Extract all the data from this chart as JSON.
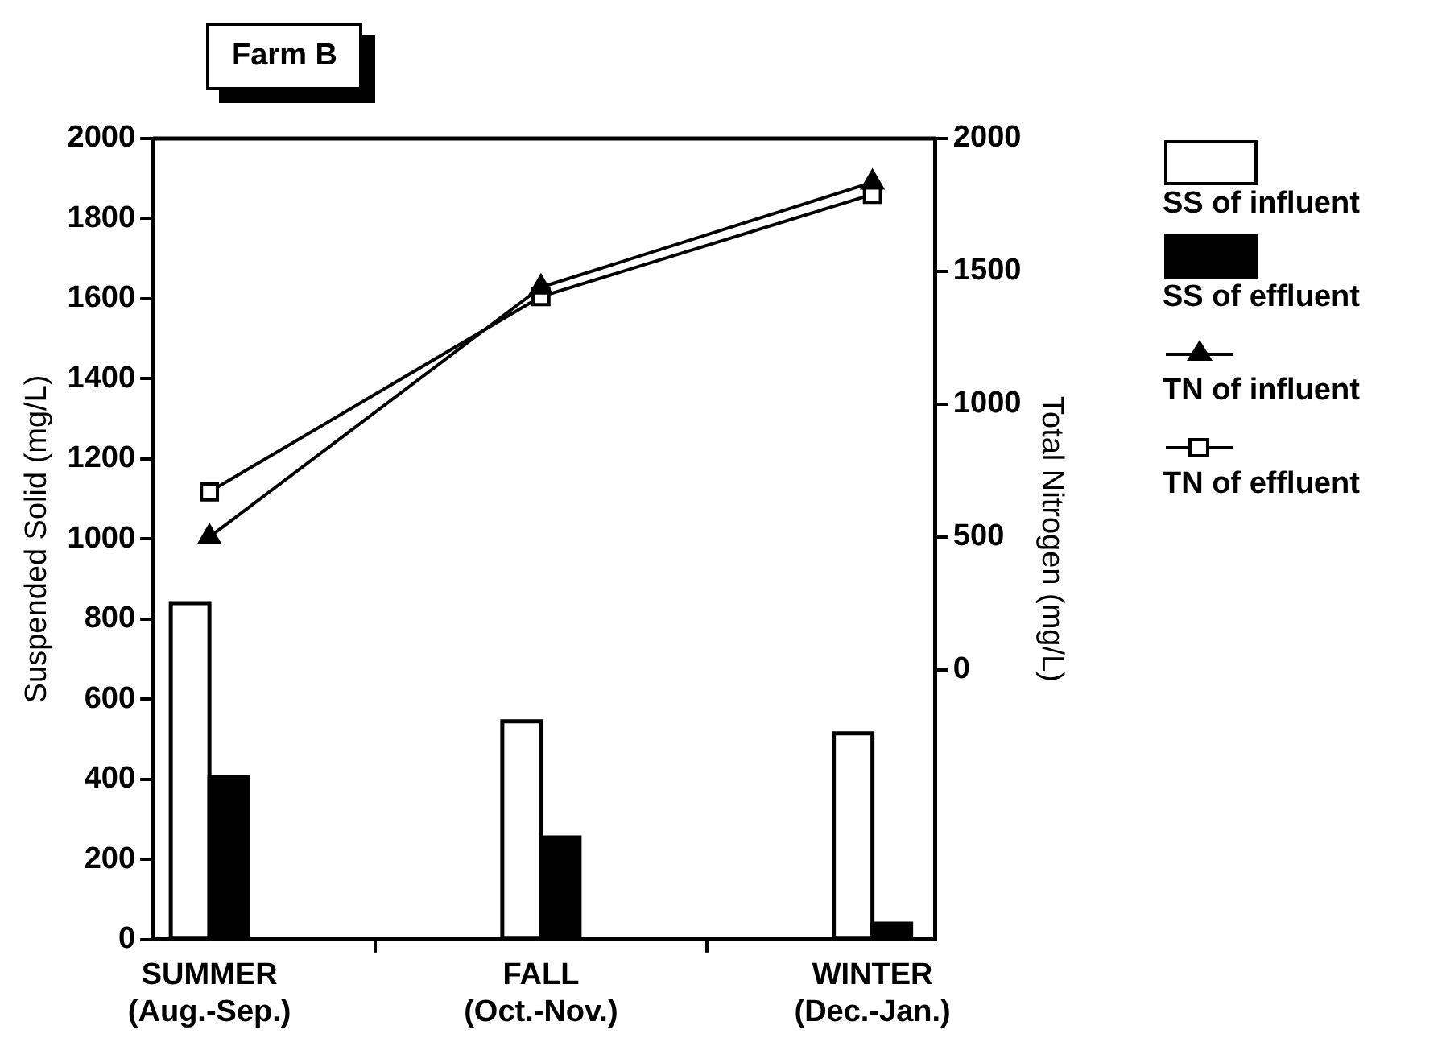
{
  "chart_data": {
    "type": "bar",
    "title": "Farm B",
    "categories": [
      "SUMMER\n(Aug.-Sep.)",
      "FALL\n(Oct.-Nov.)",
      "WINTER\n(Dec.-Jan.)"
    ],
    "ylabel": "Suspended Solid (mg/L)",
    "y2label": "Total Nitrogen (mg/L)",
    "ylim": [
      0,
      2000
    ],
    "yticks": [
      0,
      200,
      400,
      600,
      800,
      1000,
      1200,
      1400,
      1600,
      1800,
      2000
    ],
    "y2lim": [
      -1015,
      2000
    ],
    "y2ticks": [
      0,
      500,
      1000,
      1500,
      2000
    ],
    "grid": false,
    "legend": "right",
    "series": [
      {
        "name": "SS of influent",
        "color": "#ffffff",
        "values": [
          840,
          545,
          515
        ]
      },
      {
        "name": "SS of effluent",
        "color": "#000000",
        "values": [
          405,
          255,
          40
        ]
      },
      {
        "name": "TN of influent",
        "type": "line",
        "axis": "y2",
        "marker": "triangle",
        "color": "#000000",
        "values": [
          500,
          1440,
          1835
        ]
      },
      {
        "name": "TN of effluent",
        "type": "line",
        "axis": "y2",
        "marker": "square",
        "color": "#000000",
        "values": [
          670,
          1405,
          1790
        ]
      }
    ]
  }
}
